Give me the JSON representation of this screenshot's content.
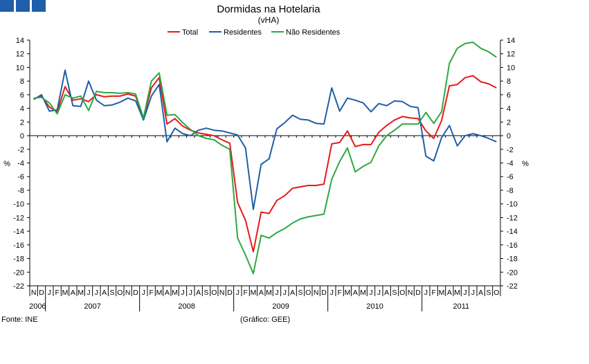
{
  "brand": {
    "color": "#1f5ea8"
  },
  "footer": {
    "source": "Fonte: INE",
    "credit": "(Gráfico: GEE)"
  },
  "chart_data": {
    "type": "line",
    "title": "Dormidas na Hotelaria",
    "subtitle": "(vHA)",
    "ylabel_left": "%",
    "ylabel_right": "%",
    "ylim": [
      -22,
      14
    ],
    "yticks": [
      14,
      12,
      10,
      8,
      6,
      4,
      2,
      0,
      -2,
      -4,
      -6,
      -8,
      -10,
      -12,
      -14,
      -16,
      -18,
      -20,
      -22
    ],
    "months": [
      "N",
      "D",
      "J",
      "F",
      "M",
      "A",
      "M",
      "J",
      "J",
      "A",
      "S",
      "O",
      "N",
      "D",
      "J",
      "F",
      "M",
      "A",
      "M",
      "J",
      "J",
      "A",
      "S",
      "O",
      "N",
      "D",
      "J",
      "F",
      "M",
      "A",
      "M",
      "J",
      "J",
      "A",
      "S",
      "O",
      "N",
      "D",
      "J",
      "F",
      "M",
      "A",
      "M",
      "J",
      "J",
      "A",
      "S",
      "O",
      "N",
      "D",
      "J",
      "F",
      "M",
      "A",
      "M",
      "J",
      "J",
      "A",
      "S",
      "O"
    ],
    "years": [
      {
        "label": "2006",
        "start": 0,
        "count": 2
      },
      {
        "label": "2007",
        "start": 2,
        "count": 12
      },
      {
        "label": "2008",
        "start": 14,
        "count": 12
      },
      {
        "label": "2009",
        "start": 26,
        "count": 12
      },
      {
        "label": "2010",
        "start": 38,
        "count": 12
      },
      {
        "label": "2011",
        "start": 50,
        "count": 10
      }
    ],
    "series": [
      {
        "name": "Total",
        "color": "#e41a1c",
        "values": [
          5.4,
          5.8,
          4.2,
          3.5,
          7.2,
          5.2,
          5.4,
          5.0,
          6.0,
          5.7,
          5.8,
          5.8,
          6.1,
          5.8,
          2.5,
          7.0,
          8.5,
          1.7,
          2.5,
          1.4,
          0.8,
          0.4,
          0.2,
          0.0,
          -0.6,
          -1.1,
          -9.8,
          -12.4,
          -17.0,
          -11.2,
          -11.4,
          -9.5,
          -8.8,
          -7.7,
          -7.5,
          -7.3,
          -7.3,
          -7.1,
          -1.2,
          -1.0,
          0.7,
          -1.6,
          -1.3,
          -1.3,
          0.5,
          1.5,
          2.3,
          2.8,
          2.6,
          2.5,
          0.7,
          -0.4,
          2.2,
          7.3,
          7.5,
          8.5,
          8.8,
          7.9,
          7.6,
          7.0
        ]
      },
      {
        "name": "Residentes",
        "color": "#1f5ea8",
        "values": [
          5.3,
          6.0,
          3.6,
          3.8,
          9.6,
          4.4,
          4.3,
          8.0,
          5.2,
          4.4,
          4.5,
          4.9,
          5.5,
          5.1,
          2.3,
          5.8,
          7.5,
          -0.9,
          1.1,
          0.3,
          0.0,
          0.8,
          1.1,
          0.8,
          0.7,
          0.4,
          0.1,
          -1.8,
          -10.8,
          -4.2,
          -3.4,
          1.0,
          1.9,
          3.0,
          2.4,
          2.3,
          1.8,
          1.7,
          7.0,
          3.6,
          5.5,
          5.2,
          4.8,
          3.5,
          4.7,
          4.4,
          5.1,
          5.0,
          4.3,
          4.1,
          -3.0,
          -3.7,
          -0.3,
          1.5,
          -1.5,
          0.0,
          0.3,
          0.0,
          -0.4,
          -0.9
        ]
      },
      {
        "name": "Não Residentes",
        "color": "#2ca83f",
        "values": [
          5.5,
          5.6,
          4.8,
          3.2,
          6.0,
          5.5,
          5.8,
          3.7,
          6.5,
          6.3,
          6.3,
          6.2,
          6.3,
          6.1,
          2.6,
          8.0,
          9.2,
          3.0,
          3.1,
          1.9,
          0.9,
          0.0,
          -0.4,
          -0.6,
          -1.4,
          -2.0,
          -15.0,
          -17.5,
          -20.2,
          -14.6,
          -15.0,
          -14.2,
          -13.6,
          -12.8,
          -12.2,
          -11.9,
          -11.7,
          -11.5,
          -6.4,
          -3.8,
          -1.8,
          -5.3,
          -4.5,
          -3.9,
          -1.5,
          0.0,
          0.8,
          1.7,
          1.7,
          1.7,
          3.4,
          1.8,
          3.5,
          10.6,
          12.8,
          13.5,
          13.7,
          12.8,
          12.3,
          11.5
        ]
      }
    ]
  }
}
